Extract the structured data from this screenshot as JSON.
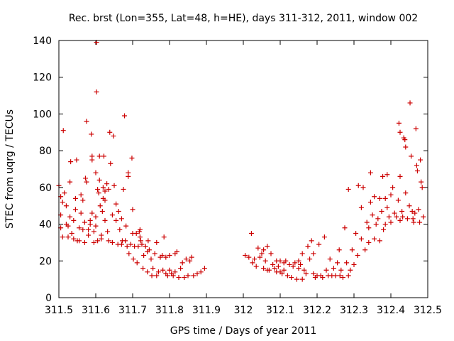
{
  "chart_data": {
    "type": "scatter",
    "title": "Rec. brst (Lon=355, Lat=48, h=HE), days 311-312, 2011, window 002",
    "xlabel": "GPS time / Days of year 2011",
    "ylabel": "STEC from uqrg / TECUs",
    "xlim": [
      311.5,
      312.5
    ],
    "ylim": [
      0,
      140
    ],
    "xticks": [
      "311.5",
      "311.6",
      "311.7",
      "311.8",
      "311.9",
      "312",
      "312.1",
      "312.2",
      "312.3",
      "312.4",
      "312.5"
    ],
    "yticks": [
      "0",
      "20",
      "40",
      "60",
      "80",
      "100",
      "120",
      "140"
    ],
    "grid": false,
    "legend": "none",
    "marker": "+",
    "colors": {
      "points": "#cc0000",
      "axes": "#000000"
    },
    "points": [
      [
        311.5,
        61
      ],
      [
        311.505,
        55
      ],
      [
        311.505,
        45
      ],
      [
        311.505,
        38
      ],
      [
        311.51,
        33
      ],
      [
        311.51,
        52
      ],
      [
        311.512,
        91
      ],
      [
        311.515,
        57
      ],
      [
        311.52,
        50
      ],
      [
        311.52,
        40
      ],
      [
        311.525,
        33
      ],
      [
        311.525,
        39
      ],
      [
        311.53,
        44
      ],
      [
        311.53,
        63
      ],
      [
        311.532,
        74
      ],
      [
        311.535,
        35
      ],
      [
        311.54,
        32
      ],
      [
        311.54,
        42
      ],
      [
        311.545,
        48
      ],
      [
        311.545,
        54
      ],
      [
        311.548,
        75
      ],
      [
        311.55,
        31
      ],
      [
        311.555,
        31
      ],
      [
        311.555,
        38
      ],
      [
        311.56,
        46
      ],
      [
        311.56,
        56
      ],
      [
        311.565,
        53
      ],
      [
        311.565,
        37
      ],
      [
        311.57,
        30
      ],
      [
        311.57,
        41
      ],
      [
        311.572,
        65
      ],
      [
        311.575,
        96
      ],
      [
        311.575,
        63
      ],
      [
        311.58,
        34
      ],
      [
        311.58,
        37
      ],
      [
        311.585,
        40
      ],
      [
        311.585,
        42
      ],
      [
        311.588,
        89
      ],
      [
        311.59,
        77
      ],
      [
        311.59,
        75
      ],
      [
        311.59,
        46
      ],
      [
        311.595,
        30
      ],
      [
        311.595,
        36
      ],
      [
        311.6,
        39
      ],
      [
        311.6,
        44
      ],
      [
        311.6,
        68
      ],
      [
        311.602,
        139
      ],
      [
        311.602,
        112
      ],
      [
        311.605,
        31
      ],
      [
        311.605,
        59
      ],
      [
        311.608,
        57
      ],
      [
        311.61,
        77
      ],
      [
        311.61,
        64
      ],
      [
        311.612,
        50
      ],
      [
        311.615,
        32
      ],
      [
        311.615,
        34
      ],
      [
        311.618,
        47
      ],
      [
        311.62,
        54
      ],
      [
        311.62,
        60
      ],
      [
        311.622,
        77
      ],
      [
        311.625,
        58
      ],
      [
        311.625,
        53
      ],
      [
        311.625,
        42
      ],
      [
        311.63,
        62
      ],
      [
        311.632,
        36
      ],
      [
        311.635,
        31
      ],
      [
        311.635,
        59
      ],
      [
        311.638,
        90
      ],
      [
        311.64,
        73
      ],
      [
        311.645,
        45
      ],
      [
        311.645,
        30
      ],
      [
        311.648,
        88
      ],
      [
        311.65,
        61
      ],
      [
        311.655,
        42
      ],
      [
        311.655,
        51
      ],
      [
        311.66,
        29
      ],
      [
        311.662,
        47
      ],
      [
        311.665,
        37
      ],
      [
        311.67,
        29
      ],
      [
        311.67,
        43
      ],
      [
        311.672,
        31
      ],
      [
        311.675,
        59
      ],
      [
        311.678,
        99
      ],
      [
        311.68,
        31
      ],
      [
        311.682,
        39
      ],
      [
        311.685,
        28
      ],
      [
        311.688,
        68
      ],
      [
        311.688,
        66
      ],
      [
        311.69,
        24
      ],
      [
        311.695,
        29
      ],
      [
        311.698,
        76
      ],
      [
        311.7,
        48
      ],
      [
        311.7,
        35
      ],
      [
        311.702,
        21
      ],
      [
        311.705,
        28
      ],
      [
        311.71,
        35
      ],
      [
        311.712,
        19
      ],
      [
        311.715,
        28
      ],
      [
        311.718,
        36
      ],
      [
        311.72,
        37
      ],
      [
        311.72,
        33
      ],
      [
        311.722,
        31
      ],
      [
        311.725,
        29
      ],
      [
        311.728,
        16
      ],
      [
        311.73,
        23
      ],
      [
        311.735,
        28
      ],
      [
        311.74,
        25
      ],
      [
        311.74,
        14
      ],
      [
        311.742,
        31
      ],
      [
        311.745,
        26
      ],
      [
        311.75,
        21
      ],
      [
        311.752,
        12
      ],
      [
        311.755,
        16
      ],
      [
        311.76,
        24
      ],
      [
        311.765,
        30
      ],
      [
        311.765,
        12
      ],
      [
        311.77,
        14
      ],
      [
        311.775,
        22
      ],
      [
        311.78,
        23
      ],
      [
        311.782,
        15
      ],
      [
        311.785,
        33
      ],
      [
        311.79,
        22
      ],
      [
        311.79,
        13
      ],
      [
        311.795,
        12
      ],
      [
        311.8,
        23
      ],
      [
        311.8,
        15
      ],
      [
        311.805,
        13
      ],
      [
        311.81,
        12
      ],
      [
        311.815,
        24
      ],
      [
        311.815,
        14
      ],
      [
        311.82,
        25
      ],
      [
        311.825,
        11
      ],
      [
        311.83,
        16
      ],
      [
        311.835,
        19
      ],
      [
        311.84,
        11
      ],
      [
        311.845,
        21
      ],
      [
        311.85,
        12
      ],
      [
        311.855,
        20
      ],
      [
        311.86,
        22
      ],
      [
        311.865,
        12
      ],
      [
        311.875,
        13
      ],
      [
        311.885,
        14
      ],
      [
        311.895,
        16
      ],
      [
        312.005,
        23
      ],
      [
        312.015,
        22
      ],
      [
        312.022,
        35
      ],
      [
        312.025,
        19
      ],
      [
        312.03,
        21
      ],
      [
        312.035,
        17
      ],
      [
        312.04,
        27
      ],
      [
        312.045,
        22
      ],
      [
        312.05,
        24
      ],
      [
        312.055,
        26
      ],
      [
        312.055,
        16
      ],
      [
        312.06,
        20
      ],
      [
        312.065,
        28
      ],
      [
        312.065,
        15
      ],
      [
        312.07,
        15
      ],
      [
        312.075,
        24
      ],
      [
        312.08,
        18
      ],
      [
        312.085,
        16
      ],
      [
        312.09,
        20
      ],
      [
        312.09,
        14
      ],
      [
        312.095,
        17
      ],
      [
        312.1,
        20
      ],
      [
        312.1,
        14
      ],
      [
        312.105,
        13
      ],
      [
        312.11,
        15
      ],
      [
        312.11,
        19
      ],
      [
        312.115,
        20
      ],
      [
        312.12,
        12
      ],
      [
        312.125,
        18
      ],
      [
        312.13,
        11
      ],
      [
        312.135,
        17
      ],
      [
        312.14,
        19
      ],
      [
        312.145,
        10
      ],
      [
        312.15,
        16
      ],
      [
        312.15,
        20
      ],
      [
        312.155,
        18
      ],
      [
        312.16,
        10
      ],
      [
        312.16,
        24
      ],
      [
        312.165,
        15
      ],
      [
        312.17,
        13
      ],
      [
        312.175,
        28
      ],
      [
        312.18,
        21
      ],
      [
        312.185,
        31
      ],
      [
        312.19,
        13
      ],
      [
        312.19,
        24
      ],
      [
        312.195,
        11
      ],
      [
        312.2,
        12
      ],
      [
        312.205,
        29
      ],
      [
        312.21,
        12
      ],
      [
        312.215,
        11
      ],
      [
        312.22,
        33
      ],
      [
        312.225,
        15
      ],
      [
        312.23,
        12
      ],
      [
        312.235,
        21
      ],
      [
        312.24,
        12
      ],
      [
        312.245,
        16
      ],
      [
        312.25,
        12
      ],
      [
        312.255,
        19
      ],
      [
        312.26,
        26
      ],
      [
        312.262,
        12
      ],
      [
        312.265,
        15
      ],
      [
        312.27,
        11
      ],
      [
        312.275,
        38
      ],
      [
        312.28,
        19
      ],
      [
        312.285,
        59
      ],
      [
        312.285,
        12
      ],
      [
        312.29,
        15
      ],
      [
        312.295,
        26
      ],
      [
        312.3,
        18
      ],
      [
        312.305,
        35
      ],
      [
        312.31,
        23
      ],
      [
        312.312,
        61
      ],
      [
        312.32,
        32
      ],
      [
        312.32,
        49
      ],
      [
        312.325,
        60
      ],
      [
        312.33,
        26
      ],
      [
        312.335,
        41
      ],
      [
        312.34,
        30
      ],
      [
        312.34,
        38
      ],
      [
        312.345,
        68
      ],
      [
        312.345,
        52
      ],
      [
        312.35,
        45
      ],
      [
        312.355,
        55
      ],
      [
        312.355,
        32
      ],
      [
        312.36,
        40
      ],
      [
        312.365,
        43
      ],
      [
        312.37,
        54
      ],
      [
        312.37,
        31
      ],
      [
        312.375,
        47
      ],
      [
        312.378,
        66
      ],
      [
        312.38,
        37
      ],
      [
        312.385,
        40
      ],
      [
        312.385,
        54
      ],
      [
        312.39,
        49
      ],
      [
        312.39,
        67
      ],
      [
        312.395,
        44
      ],
      [
        312.4,
        41
      ],
      [
        312.4,
        56
      ],
      [
        312.405,
        60
      ],
      [
        312.41,
        46
      ],
      [
        312.415,
        44
      ],
      [
        312.42,
        53
      ],
      [
        312.422,
        95
      ],
      [
        312.425,
        90
      ],
      [
        312.425,
        66
      ],
      [
        312.425,
        42
      ],
      [
        312.43,
        47
      ],
      [
        312.432,
        44
      ],
      [
        312.435,
        87
      ],
      [
        312.438,
        86
      ],
      [
        312.44,
        82
      ],
      [
        312.44,
        57
      ],
      [
        312.445,
        43
      ],
      [
        312.45,
        50
      ],
      [
        312.452,
        106
      ],
      [
        312.455,
        77
      ],
      [
        312.458,
        47
      ],
      [
        312.46,
        43
      ],
      [
        312.462,
        41
      ],
      [
        312.465,
        46
      ],
      [
        312.468,
        92
      ],
      [
        312.47,
        72
      ],
      [
        312.472,
        69
      ],
      [
        312.475,
        48
      ],
      [
        312.478,
        41
      ],
      [
        312.48,
        75
      ],
      [
        312.482,
        63
      ],
      [
        312.485,
        60
      ],
      [
        312.488,
        44
      ]
    ]
  }
}
